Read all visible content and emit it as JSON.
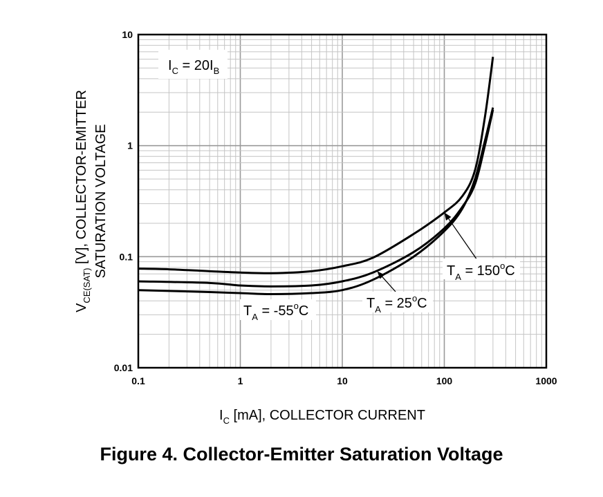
{
  "chart_data": {
    "type": "line",
    "x_scale": "log",
    "y_scale": "log",
    "xlim": [
      0.1,
      1000
    ],
    "ylim": [
      0.01,
      10
    ],
    "grid": true,
    "x_ticks": [
      "0.1",
      "1",
      "10",
      "100",
      "1000"
    ],
    "y_ticks": [
      "0.01",
      "0.1",
      "1",
      "10"
    ],
    "xlabel": {
      "main": "I",
      "sub": "C",
      "rest": " [mA], COLLECTOR CURRENT"
    },
    "ylabel": {
      "line1_main": "V",
      "line1_sub": "CE(SAT)",
      "line1_rest": " [V], COLLECTOR-EMITTER",
      "line2": "SATURATION VOLTAGE"
    },
    "condition": {
      "main1": "I",
      "sub1": "C",
      "mid": " = 20I",
      "sub2": "B"
    },
    "series": [
      {
        "name": "TA = 150°C",
        "label": {
          "main": "T",
          "sub": "A",
          "rest": " = 150",
          "deg": "o",
          "unit": "C"
        },
        "points": [
          [
            0.1,
            0.078
          ],
          [
            0.2,
            0.077
          ],
          [
            0.5,
            0.074
          ],
          [
            1,
            0.072
          ],
          [
            2,
            0.071
          ],
          [
            5,
            0.074
          ],
          [
            10,
            0.082
          ],
          [
            20,
            0.098
          ],
          [
            50,
            0.16
          ],
          [
            100,
            0.25
          ],
          [
            150,
            0.35
          ],
          [
            200,
            0.6
          ],
          [
            250,
            1.8
          ],
          [
            300,
            6.3
          ]
        ]
      },
      {
        "name": "TA = 25°C",
        "label": {
          "main": "T",
          "sub": "A",
          "rest": " = 25",
          "deg": "o",
          "unit": "C"
        },
        "points": [
          [
            0.1,
            0.06
          ],
          [
            0.5,
            0.058
          ],
          [
            1,
            0.055
          ],
          [
            2,
            0.054
          ],
          [
            5,
            0.055
          ],
          [
            10,
            0.06
          ],
          [
            20,
            0.072
          ],
          [
            50,
            0.11
          ],
          [
            100,
            0.18
          ],
          [
            150,
            0.28
          ],
          [
            200,
            0.45
          ],
          [
            250,
            1.0
          ],
          [
            300,
            2.1
          ]
        ]
      },
      {
        "name": "TA = -55°C",
        "label": {
          "main": "T",
          "sub": "A",
          "rest": " = -55",
          "deg": "o",
          "unit": "C"
        },
        "points": [
          [
            0.1,
            0.05
          ],
          [
            0.5,
            0.048
          ],
          [
            1,
            0.047
          ],
          [
            2,
            0.046
          ],
          [
            5,
            0.047
          ],
          [
            10,
            0.05
          ],
          [
            20,
            0.062
          ],
          [
            50,
            0.1
          ],
          [
            100,
            0.17
          ],
          [
            150,
            0.27
          ],
          [
            200,
            0.5
          ],
          [
            250,
            1.1
          ],
          [
            300,
            2.2
          ]
        ]
      }
    ],
    "annotations": [
      {
        "series": "TA = 150°C",
        "x": 100,
        "y": 0.25
      },
      {
        "series": "TA = 25°C",
        "x": 22,
        "y": 0.074
      }
    ]
  },
  "caption": "Figure 4. Collector-Emitter Saturation Voltage"
}
